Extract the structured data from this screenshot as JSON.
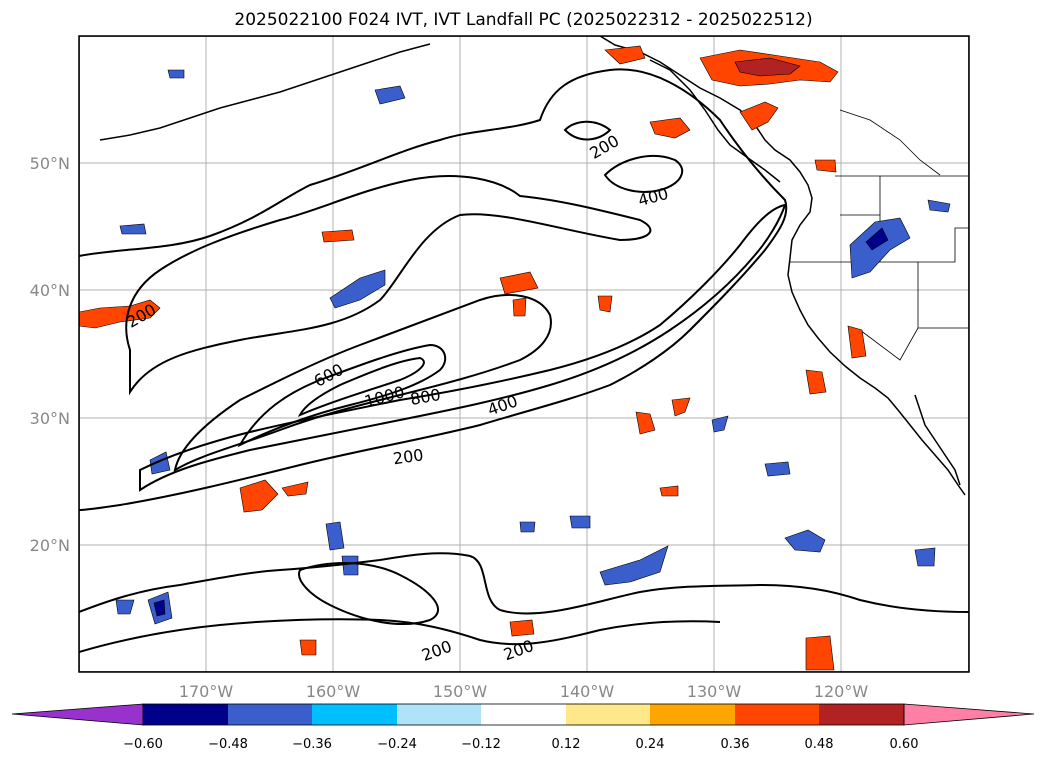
{
  "title": "2025022100 F024 IVT, IVT Landfall PC (2025022312 - 2025022512)",
  "map": {
    "lon_labels": [
      "170°W",
      "160°W",
      "150°W",
      "140°W",
      "130°W",
      "120°W"
    ],
    "lat_labels": [
      "50°N",
      "40°N",
      "30°N",
      "20°N"
    ],
    "contour_labels": [
      "200",
      "400",
      "200",
      "600",
      "1000",
      "800",
      "400",
      "200",
      "200",
      "200",
      "200"
    ]
  },
  "colorbar": {
    "ticks": [
      "−0.60",
      "−0.48",
      "−0.36",
      "−0.24",
      "−0.12",
      "0.12",
      "0.24",
      "0.36",
      "0.48",
      "0.60"
    ],
    "colors": [
      "#9932cc",
      "#00008b",
      "#3a5fcd",
      "#00bfff",
      "#afe3fa",
      "#ffffff",
      "#ffe88a",
      "#ffa500",
      "#ff4500",
      "#b22222",
      "#ff7fa7"
    ]
  }
}
